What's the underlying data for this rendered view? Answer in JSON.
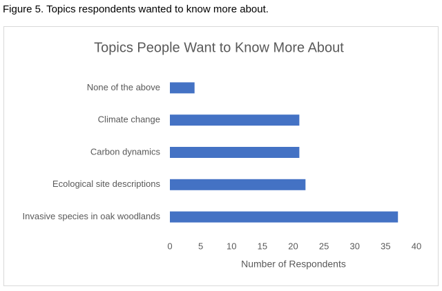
{
  "caption": "Figure 5. Topics respondents wanted to know more about.",
  "chart_data": {
    "type": "hbar",
    "title": "Topics People Want to Know More About",
    "x_label": "Number of Respondents",
    "categories": [
      "None of the above",
      "Climate change",
      "Carbon dynamics",
      "Ecological site descriptions",
      "Invasive species in oak woodlands"
    ],
    "values": [
      4,
      21,
      21,
      22,
      37
    ],
    "color": "#4472c4",
    "xlim": [
      0,
      40
    ],
    "xticks": [
      0,
      5,
      10,
      15,
      20,
      25,
      30,
      35,
      40
    ],
    "grid": false
  }
}
